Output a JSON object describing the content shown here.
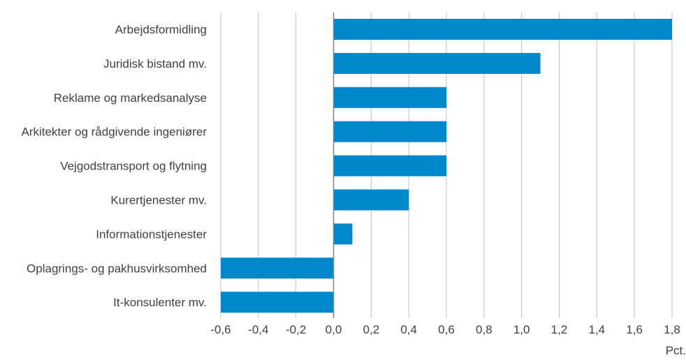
{
  "chart_data": {
    "type": "bar",
    "orientation": "horizontal",
    "categories": [
      "Arbejdsformidling",
      "Juridisk bistand mv.",
      "Reklame og markedsanalyse",
      "Arkitekter og rådgivende ingeniører",
      "Vejgodstransport og flytning",
      "Kurertjenester mv.",
      "Informationstjenester",
      "Oplagrings- og pakhusvirksomhed",
      "It-konsulenter mv."
    ],
    "values": [
      1.8,
      1.1,
      0.6,
      0.6,
      0.6,
      0.4,
      0.1,
      -0.6,
      -0.6
    ],
    "xlim": [
      -0.6,
      1.8
    ],
    "xticks": [
      -0.6,
      -0.4,
      -0.2,
      0.0,
      0.2,
      0.4,
      0.6,
      0.8,
      1.0,
      1.2,
      1.4,
      1.6,
      1.8
    ],
    "xtick_labels": [
      "-0,6",
      "-0,4",
      "-0,2",
      "0,0",
      "0,2",
      "0,4",
      "0,6",
      "0,8",
      "1,0",
      "1,2",
      "1,4",
      "1,6",
      "1,8"
    ],
    "xlabel": "Pct.",
    "grid": "vertical",
    "bar_color": "#0088cc"
  }
}
